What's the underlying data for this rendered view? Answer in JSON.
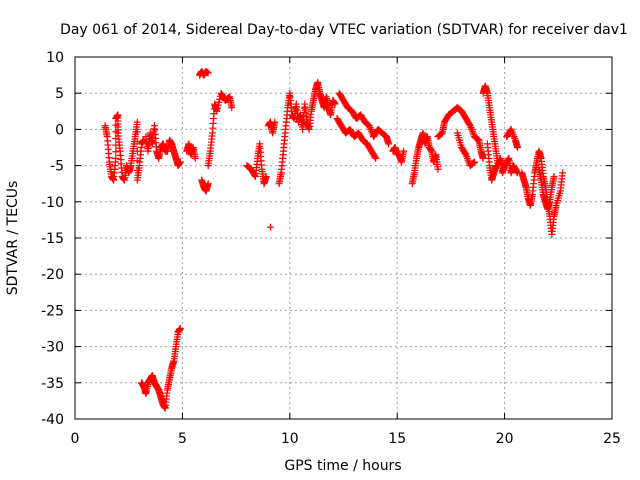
{
  "chart_data": {
    "type": "scatter",
    "title": "Day 061 of 2014, Sidereal Day-to-day VTEC variation (SDTVAR) for receiver dav1",
    "xlabel": "GPS time / hours",
    "ylabel": "SDTVAR / TECUs",
    "xlim": [
      0,
      25
    ],
    "ylim": [
      -40,
      10
    ],
    "x_ticks": [
      0,
      5,
      10,
      15,
      20,
      25
    ],
    "y_ticks": [
      -40,
      -35,
      -30,
      -25,
      -20,
      -15,
      -10,
      -5,
      0,
      5,
      10
    ],
    "grid": true,
    "marker": "plus",
    "color": "#ff0000",
    "segments": [
      {
        "name": "seg-01",
        "points": [
          [
            1.4,
            0.5
          ],
          [
            1.5,
            -1.0
          ],
          [
            1.6,
            -4.5
          ],
          [
            1.7,
            -6.5
          ],
          [
            1.8,
            -7.0
          ],
          [
            1.9,
            -4.0
          ],
          [
            1.9,
            1.5
          ],
          [
            2.0,
            2.0
          ],
          [
            2.0,
            -0.5
          ],
          [
            2.1,
            -3.0
          ],
          [
            2.2,
            -6.5
          ],
          [
            2.3,
            -7.0
          ],
          [
            2.4,
            -5.0
          ],
          [
            2.5,
            -6.0
          ],
          [
            2.6,
            -5.0
          ],
          [
            2.7,
            -3.0
          ],
          [
            2.8,
            -1.0
          ],
          [
            2.9,
            1.0
          ],
          [
            2.9,
            -7.0
          ],
          [
            3.0,
            -5.0
          ],
          [
            3.1,
            -2.0
          ],
          [
            3.2,
            -1.5
          ]
        ]
      },
      {
        "name": "seg-02",
        "points": [
          [
            3.3,
            -1.0
          ],
          [
            3.4,
            -3.0
          ],
          [
            3.5,
            -0.5
          ],
          [
            3.6,
            -2.0
          ],
          [
            3.7,
            0.5
          ],
          [
            3.8,
            -3.0
          ],
          [
            3.9,
            -4.0
          ],
          [
            4.0,
            -2.5
          ],
          [
            4.1,
            -2.0
          ],
          [
            4.2,
            -3.0
          ],
          [
            4.3,
            -3.0
          ],
          [
            4.4,
            -1.5
          ],
          [
            4.5,
            -2.0
          ],
          [
            4.6,
            -3.0
          ],
          [
            4.7,
            -4.0
          ],
          [
            4.8,
            -5.0
          ],
          [
            4.9,
            -4.5
          ]
        ]
      },
      {
        "name": "seg-03",
        "points": [
          [
            3.1,
            -35.0
          ],
          [
            3.2,
            -35.5
          ],
          [
            3.3,
            -36.5
          ],
          [
            3.4,
            -35.0
          ],
          [
            3.5,
            -34.5
          ],
          [
            3.6,
            -34.0
          ],
          [
            3.7,
            -35.0
          ],
          [
            3.8,
            -35.5
          ],
          [
            3.9,
            -36.0
          ],
          [
            4.0,
            -37.0
          ],
          [
            4.1,
            -38.0
          ],
          [
            4.2,
            -38.5
          ],
          [
            4.3,
            -36.0
          ],
          [
            4.4,
            -34.5
          ],
          [
            4.5,
            -33.0
          ],
          [
            4.6,
            -32.0
          ],
          [
            4.7,
            -30.0
          ],
          [
            4.8,
            -28.0
          ],
          [
            4.9,
            -27.5
          ]
        ]
      },
      {
        "name": "seg-04",
        "points": [
          [
            5.2,
            -3.0
          ],
          [
            5.3,
            -2.0
          ],
          [
            5.4,
            -3.5
          ],
          [
            5.5,
            -2.5
          ],
          [
            5.6,
            -4.0
          ]
        ]
      },
      {
        "name": "seg-05",
        "points": [
          [
            5.8,
            7.5
          ],
          [
            5.9,
            8.0
          ],
          [
            6.0,
            7.5
          ],
          [
            6.1,
            8.0
          ],
          [
            6.2,
            7.8
          ]
        ]
      },
      {
        "name": "seg-06",
        "points": [
          [
            5.9,
            -7.0
          ],
          [
            6.0,
            -8.0
          ],
          [
            6.1,
            -8.5
          ],
          [
            6.2,
            -7.5
          ]
        ]
      },
      {
        "name": "seg-07",
        "points": [
          [
            6.2,
            -5.0
          ],
          [
            6.3,
            -3.0
          ],
          [
            6.4,
            -0.5
          ],
          [
            6.5,
            3.5
          ],
          [
            6.6,
            2.5
          ],
          [
            6.8,
            5.0
          ],
          [
            7.0,
            4.0
          ],
          [
            7.2,
            4.5
          ],
          [
            7.3,
            3.0
          ]
        ]
      },
      {
        "name": "seg-08",
        "points": [
          [
            8.0,
            -5.0
          ],
          [
            8.2,
            -5.5
          ],
          [
            8.4,
            -6.5
          ],
          [
            8.5,
            -4.0
          ],
          [
            8.6,
            -2.0
          ],
          [
            8.7,
            -5.5
          ],
          [
            8.8,
            -7.5
          ],
          [
            8.9,
            -6.5
          ]
        ]
      },
      {
        "name": "seg-09",
        "points": [
          [
            9.1,
            -13.5
          ]
        ]
      },
      {
        "name": "seg-10",
        "points": [
          [
            9.0,
            0.5
          ],
          [
            9.1,
            1.0
          ],
          [
            9.2,
            -0.5
          ],
          [
            9.3,
            1.0
          ]
        ]
      },
      {
        "name": "seg-11",
        "points": [
          [
            9.5,
            -7.5
          ],
          [
            9.6,
            -6.0
          ],
          [
            9.7,
            -3.0
          ],
          [
            9.8,
            0.0
          ],
          [
            9.9,
            3.0
          ],
          [
            10.0,
            5.0
          ],
          [
            10.1,
            2.0
          ],
          [
            10.2,
            1.5
          ],
          [
            10.3,
            3.5
          ],
          [
            10.4,
            1.0
          ],
          [
            10.5,
            2.0
          ],
          [
            10.6,
            0.0
          ],
          [
            10.7,
            3.5
          ],
          [
            10.8,
            1.0
          ],
          [
            10.9,
            0.0
          ],
          [
            11.0,
            2.5
          ],
          [
            11.1,
            4.0
          ],
          [
            11.2,
            5.5
          ],
          [
            11.3,
            6.5
          ],
          [
            11.4,
            5.0
          ],
          [
            11.5,
            4.0
          ],
          [
            11.6,
            3.0
          ],
          [
            11.7,
            4.5
          ],
          [
            11.8,
            3.0
          ],
          [
            11.9,
            2.0
          ],
          [
            12.0,
            4.0
          ],
          [
            12.1,
            3.5
          ]
        ]
      },
      {
        "name": "seg-12",
        "points": [
          [
            12.2,
            1.5
          ],
          [
            12.4,
            0.5
          ],
          [
            12.6,
            -0.5
          ],
          [
            12.8,
            0.0
          ],
          [
            13.0,
            -1.0
          ],
          [
            13.2,
            -0.5
          ],
          [
            13.4,
            -1.5
          ],
          [
            13.6,
            -2.0
          ],
          [
            13.8,
            -3.0
          ],
          [
            14.0,
            -4.0
          ]
        ]
      },
      {
        "name": "seg-13",
        "points": [
          [
            12.3,
            5.0
          ],
          [
            12.5,
            4.0
          ],
          [
            12.7,
            3.0
          ],
          [
            12.9,
            2.5
          ],
          [
            13.1,
            1.5
          ],
          [
            13.3,
            2.0
          ],
          [
            13.5,
            1.0
          ],
          [
            13.7,
            0.5
          ],
          [
            13.9,
            -1.0
          ],
          [
            14.1,
            0.0
          ],
          [
            14.3,
            -0.5
          ],
          [
            14.5,
            -1.0
          ],
          [
            14.6,
            -2.0
          ]
        ]
      },
      {
        "name": "seg-14",
        "points": [
          [
            14.8,
            -3.0
          ],
          [
            14.9,
            -2.5
          ],
          [
            15.0,
            -3.5
          ]
        ]
      },
      {
        "name": "seg-15",
        "points": [
          [
            15.1,
            -3.5
          ],
          [
            15.2,
            -4.5
          ],
          [
            15.3,
            -3.0
          ]
        ]
      },
      {
        "name": "seg-16",
        "points": [
          [
            15.7,
            -7.5
          ],
          [
            15.8,
            -6.0
          ],
          [
            15.9,
            -4.0
          ],
          [
            16.0,
            -2.5
          ],
          [
            16.1,
            -1.5
          ],
          [
            16.2,
            -0.5
          ],
          [
            16.3,
            -2.0
          ],
          [
            16.4,
            -1.0
          ],
          [
            16.5,
            -2.5
          ],
          [
            16.6,
            -3.0
          ],
          [
            16.7,
            -4.5
          ],
          [
            16.8,
            -3.5
          ],
          [
            16.9,
            -5.5
          ]
        ]
      },
      {
        "name": "seg-17",
        "points": [
          [
            16.9,
            -1.0
          ],
          [
            17.1,
            -0.5
          ],
          [
            17.2,
            1.0
          ],
          [
            17.4,
            2.0
          ],
          [
            17.6,
            2.5
          ],
          [
            17.8,
            3.0
          ],
          [
            18.0,
            2.5
          ],
          [
            18.2,
            1.5
          ],
          [
            18.4,
            0.5
          ],
          [
            18.6,
            -1.0
          ],
          [
            18.8,
            -1.5
          ],
          [
            18.9,
            -3.0
          ],
          [
            19.0,
            -4.0
          ]
        ]
      },
      {
        "name": "seg-18",
        "points": [
          [
            17.8,
            -0.5
          ],
          [
            18.0,
            -2.5
          ],
          [
            18.2,
            -3.5
          ],
          [
            18.4,
            -5.0
          ],
          [
            18.6,
            -4.5
          ]
        ]
      },
      {
        "name": "seg-19",
        "points": [
          [
            19.0,
            5.0
          ],
          [
            19.1,
            6.0
          ],
          [
            19.2,
            5.0
          ],
          [
            19.3,
            3.0
          ],
          [
            19.4,
            1.0
          ],
          [
            19.5,
            -1.0
          ],
          [
            19.6,
            -3.0
          ],
          [
            19.7,
            -5.0
          ],
          [
            19.8,
            -4.0
          ],
          [
            19.9,
            -6.0
          ],
          [
            20.0,
            -5.0
          ],
          [
            20.1,
            -4.5
          ],
          [
            20.2,
            -4.0
          ],
          [
            20.3,
            -6.0
          ],
          [
            20.4,
            -5.0
          ],
          [
            20.5,
            -5.5
          ],
          [
            20.6,
            -6.0
          ]
        ]
      },
      {
        "name": "seg-20",
        "points": [
          [
            19.2,
            -2.0
          ],
          [
            19.3,
            -5.0
          ],
          [
            19.4,
            -7.0
          ],
          [
            19.5,
            -6.0
          ],
          [
            19.6,
            -5.0
          ]
        ]
      },
      {
        "name": "seg-21",
        "points": [
          [
            20.1,
            -1.0
          ],
          [
            20.3,
            0.0
          ],
          [
            20.5,
            -1.5
          ],
          [
            20.6,
            -2.5
          ]
        ]
      },
      {
        "name": "seg-22",
        "points": [
          [
            20.8,
            -6.0
          ],
          [
            20.9,
            -7.0
          ],
          [
            21.0,
            -8.0
          ],
          [
            21.1,
            -9.5
          ],
          [
            21.2,
            -10.5
          ],
          [
            21.3,
            -9.0
          ],
          [
            21.4,
            -6.0
          ],
          [
            21.5,
            -4.5
          ],
          [
            21.6,
            -3.0
          ],
          [
            21.7,
            -4.0
          ],
          [
            21.8,
            -6.5
          ],
          [
            21.9,
            -8.0
          ],
          [
            22.0,
            -10.0
          ],
          [
            22.1,
            -12.0
          ],
          [
            22.2,
            -14.5
          ],
          [
            22.3,
            -12.0
          ],
          [
            22.4,
            -10.5
          ],
          [
            22.6,
            -8.5
          ],
          [
            22.7,
            -6.0
          ]
        ]
      },
      {
        "name": "seg-23",
        "points": [
          [
            21.6,
            -5.5
          ],
          [
            21.7,
            -7.0
          ],
          [
            21.8,
            -9.0
          ],
          [
            21.9,
            -10.0
          ],
          [
            22.0,
            -11.0
          ],
          [
            22.1,
            -10.0
          ],
          [
            22.2,
            -8.0
          ],
          [
            22.3,
            -6.5
          ]
        ]
      }
    ]
  }
}
